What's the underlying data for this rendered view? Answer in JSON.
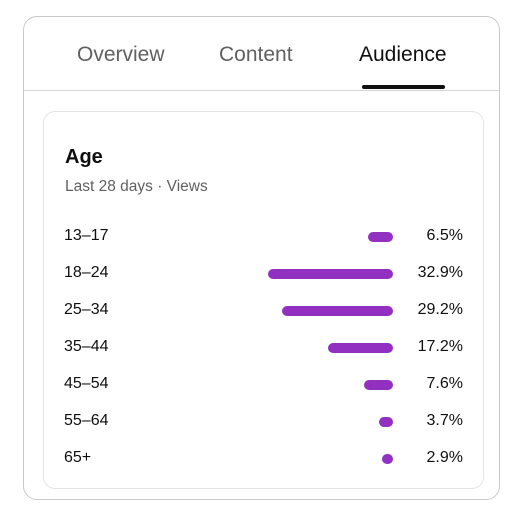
{
  "tabs": [
    {
      "label": "Overview",
      "active": false
    },
    {
      "label": "Content",
      "active": false
    },
    {
      "label": "Audience",
      "active": true
    }
  ],
  "card": {
    "title": "Age",
    "subtitle": "Last 28 days · Views"
  },
  "colors": {
    "bar": "#9230c2",
    "active_tab": "#0f0f0f",
    "inactive_tab": "#606060"
  },
  "chart_data": {
    "type": "bar",
    "orientation": "horizontal",
    "categories": [
      "13–17",
      "18–24",
      "25–34",
      "35–44",
      "45–54",
      "55–64",
      "65+"
    ],
    "values": [
      6.5,
      32.9,
      29.2,
      17.2,
      7.6,
      3.7,
      2.9
    ],
    "value_labels": [
      "6.5%",
      "32.9%",
      "29.2%",
      "17.2%",
      "7.6%",
      "3.7%",
      "2.9%"
    ],
    "unit": "%"
  }
}
